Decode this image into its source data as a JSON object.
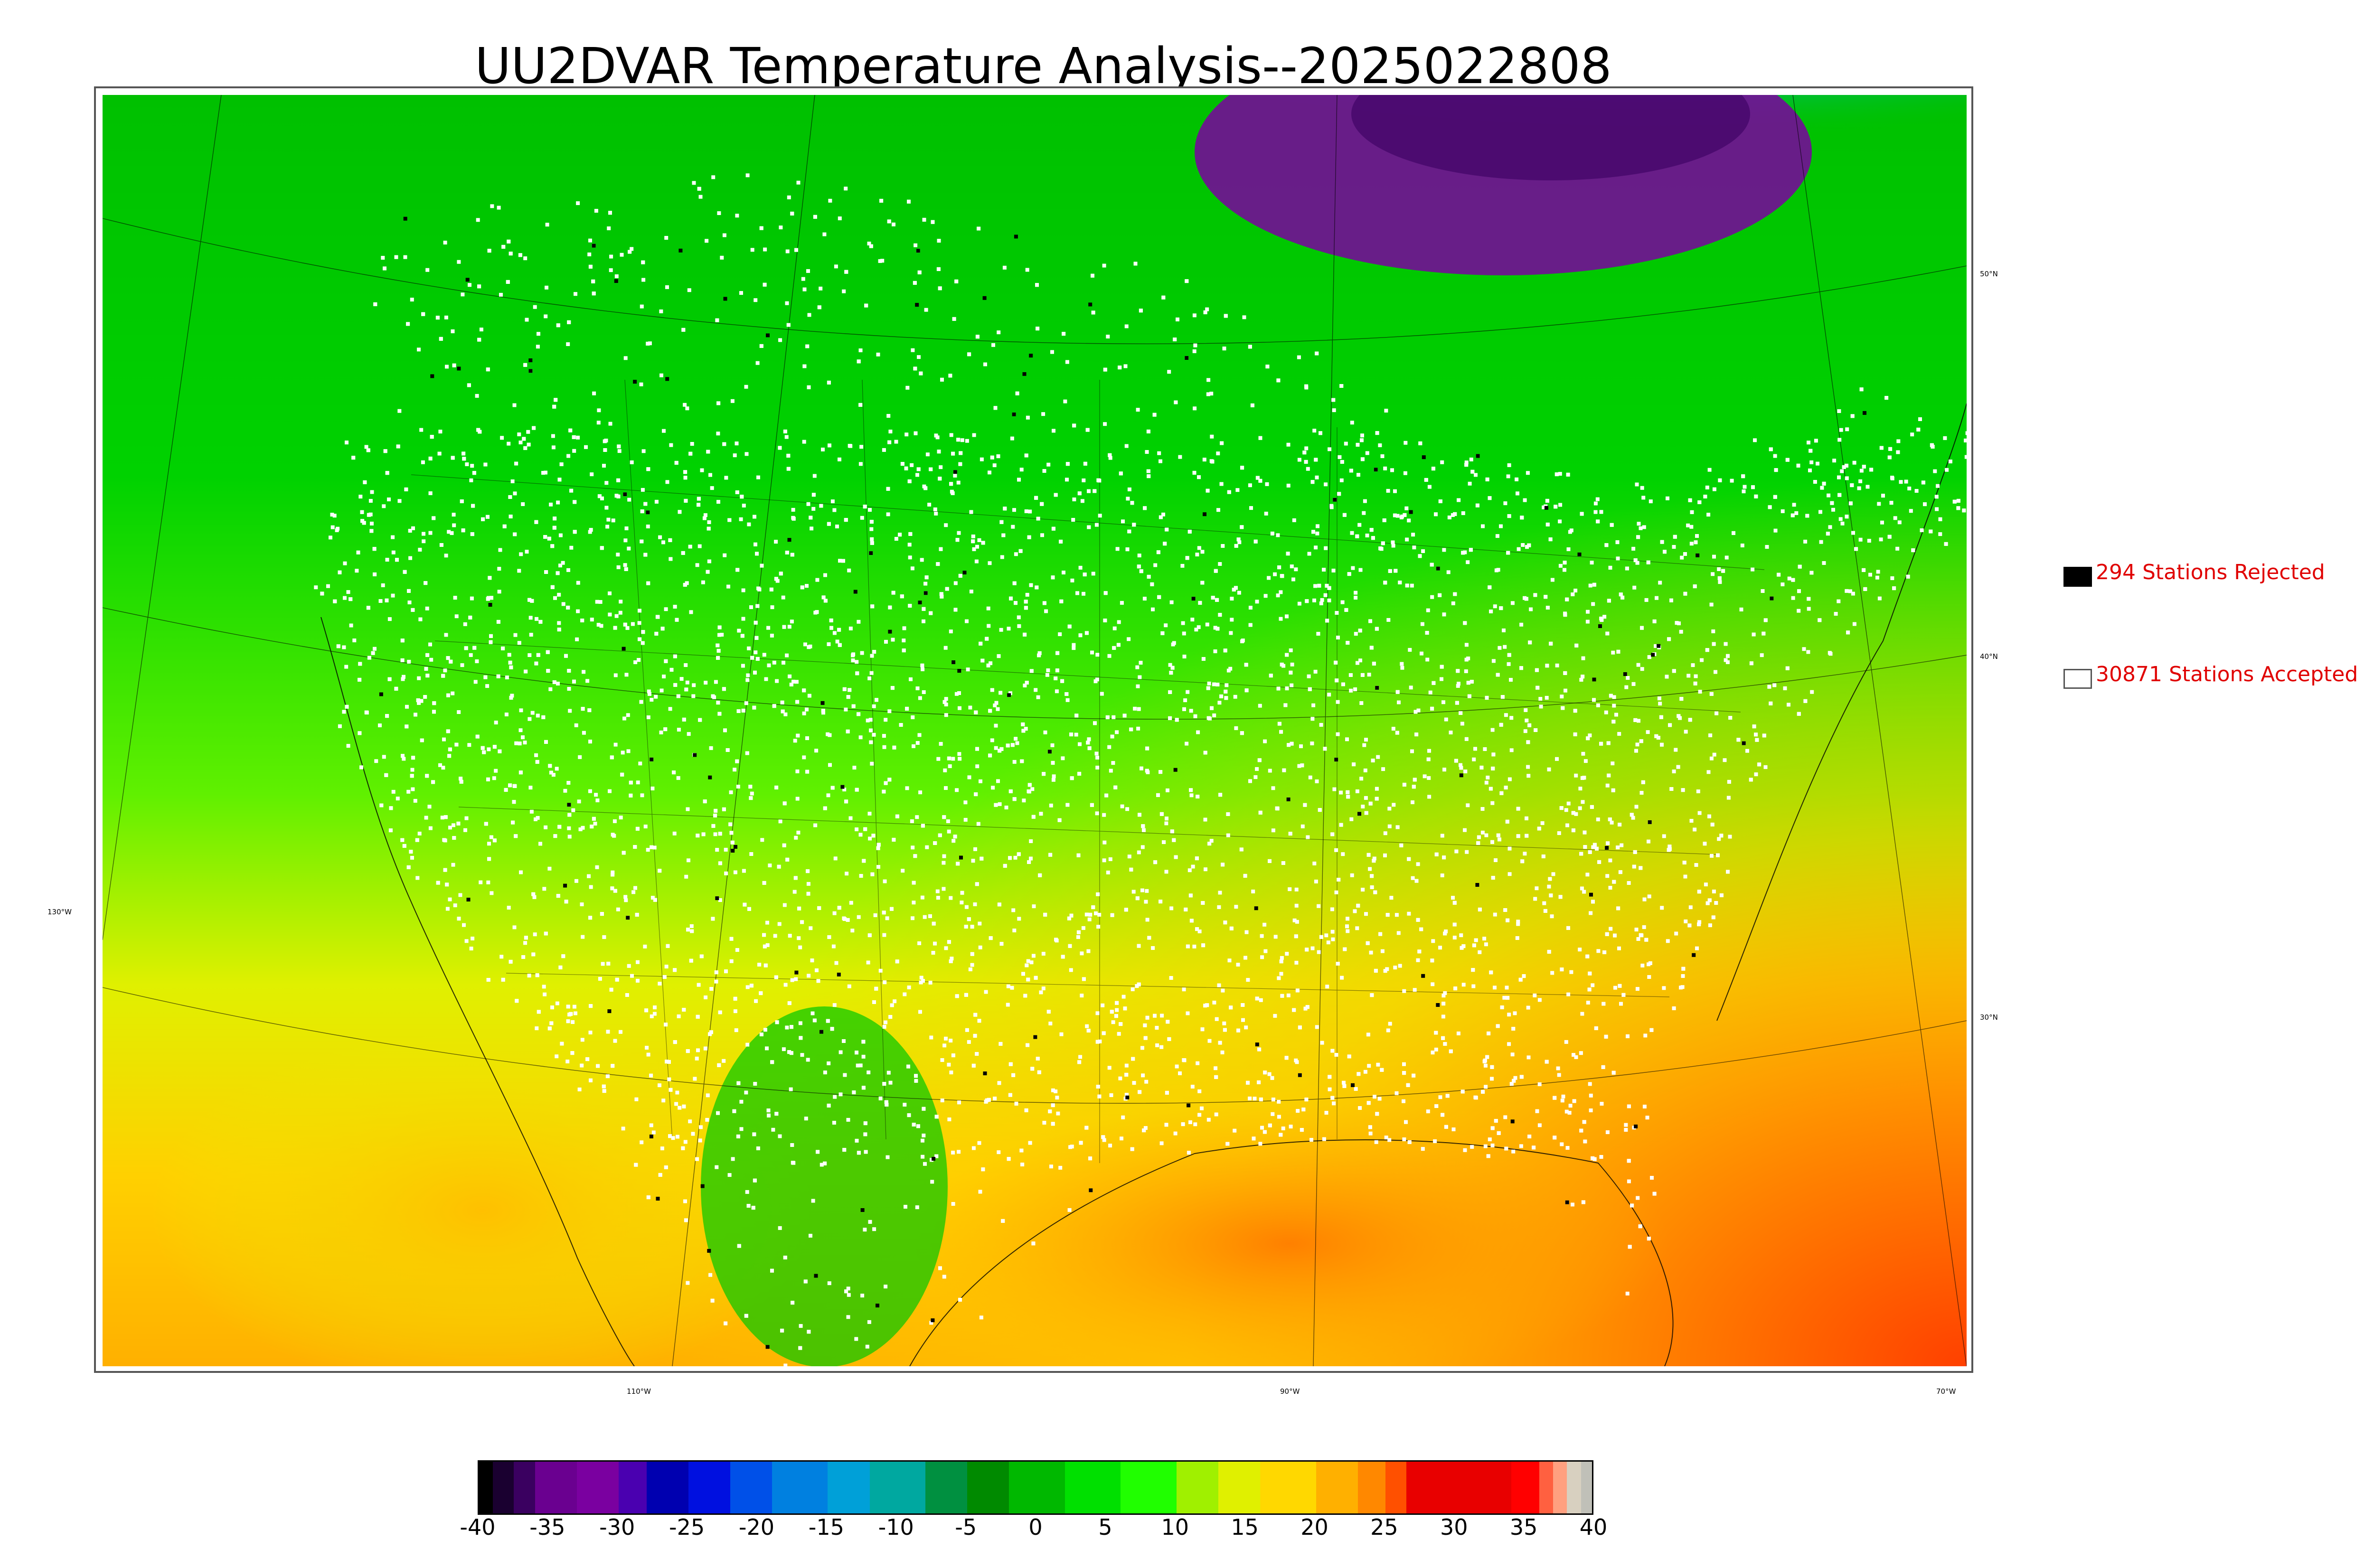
{
  "title": "UU2DVAR Temperature Analysis--2025022808",
  "map": {
    "parallels": [
      {
        "label": "50°N",
        "side": "right"
      },
      {
        "label": "40°N",
        "side": "right"
      },
      {
        "label": "30°N",
        "side": "right"
      }
    ],
    "meridians": [
      {
        "label": "130°W",
        "side": "left"
      },
      {
        "label": "110°W",
        "side": "bottom"
      },
      {
        "label": "90°W",
        "side": "bottom"
      },
      {
        "label": "70°W",
        "side": "bottom"
      }
    ]
  },
  "legend": {
    "rejected": {
      "label": "294 Stations Rejected",
      "count": 294,
      "color": "#000000"
    },
    "accepted": {
      "label": "30871 Stations Accepted",
      "count": 30871,
      "color": "#ffffff"
    },
    "text_color": "#e00000"
  },
  "colorbar": {
    "min": -40,
    "max": 40,
    "tick_labels": [
      "-40",
      "-35",
      "-30",
      "-25",
      "-20",
      "-15",
      "-10",
      "-5",
      "0",
      "5",
      "10",
      "15",
      "20",
      "25",
      "30",
      "35",
      "40"
    ],
    "colors": [
      {
        "from": -40,
        "to": -39,
        "color": "#000000"
      },
      {
        "from": -39,
        "to": -37.5,
        "color": "#1a0030"
      },
      {
        "from": -37.5,
        "to": -36,
        "color": "#3a0060"
      },
      {
        "from": -36,
        "to": -33,
        "color": "#6a0090"
      },
      {
        "from": -33,
        "to": -30,
        "color": "#7a00a0"
      },
      {
        "from": -30,
        "to": -28,
        "color": "#4a00b0"
      },
      {
        "from": -28,
        "to": -25,
        "color": "#0000b0"
      },
      {
        "from": -25,
        "to": -22,
        "color": "#0010e0"
      },
      {
        "from": -22,
        "to": -19,
        "color": "#0050e8"
      },
      {
        "from": -19,
        "to": -15,
        "color": "#0080e0"
      },
      {
        "from": -15,
        "to": -12,
        "color": "#00a0d8"
      },
      {
        "from": -12,
        "to": -8,
        "color": "#00a8a0"
      },
      {
        "from": -8,
        "to": -5,
        "color": "#009040"
      },
      {
        "from": -5,
        "to": -2,
        "color": "#008a00"
      },
      {
        "from": -2,
        "to": 2,
        "color": "#00b800"
      },
      {
        "from": 2,
        "to": 6,
        "color": "#00e000"
      },
      {
        "from": 6,
        "to": 10,
        "color": "#20ff00"
      },
      {
        "from": 10,
        "to": 13,
        "color": "#a0f000"
      },
      {
        "from": 13,
        "to": 16,
        "color": "#e0f000"
      },
      {
        "from": 16,
        "to": 20,
        "color": "#ffd800"
      },
      {
        "from": 20,
        "to": 23,
        "color": "#ffb000"
      },
      {
        "from": 23,
        "to": 25,
        "color": "#ff8800"
      },
      {
        "from": 25,
        "to": 26.5,
        "color": "#ff5000"
      },
      {
        "from": 26.5,
        "to": 34,
        "color": "#e80000"
      },
      {
        "from": 34,
        "to": 36,
        "color": "#ff0000"
      },
      {
        "from": 36,
        "to": 37,
        "color": "#ff6040"
      },
      {
        "from": 37,
        "to": 38,
        "color": "#ffa080"
      },
      {
        "from": 38,
        "to": 39,
        "color": "#d8d0c0"
      },
      {
        "from": 39,
        "to": 40,
        "color": "#c0c0b8"
      }
    ]
  },
  "palette": {
    "cold_purple": "#7a00a0",
    "blue": "#0020d0",
    "cyan": "#00a8c8",
    "green": "#00c800",
    "light_green": "#40ff00",
    "yellow": "#e8ff00",
    "orange": "#ffb000",
    "red_orange": "#ff5000"
  }
}
